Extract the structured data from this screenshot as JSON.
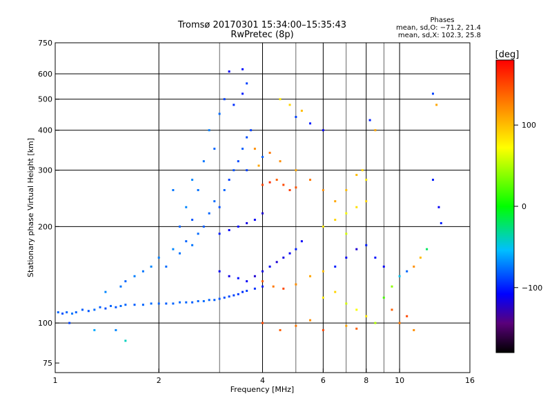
{
  "chart_data": {
    "type": "scatter",
    "title": "Tromsø 20170301 15:34:00–15:35:43",
    "subtitle": "RwPretec (8p)",
    "xlabel": "Frequency [MHz]",
    "ylabel": "Stationary phase Virtual Height [km]",
    "x_scale": "log",
    "y_scale": "log",
    "xlim": [
      1,
      16
    ],
    "ylim": [
      70,
      750
    ],
    "x_ticks": [
      1,
      2,
      4,
      6,
      8,
      10,
      16
    ],
    "y_ticks": [
      75,
      100,
      200,
      300,
      400,
      500,
      600,
      750
    ],
    "x_grid_major": [
      2,
      4,
      6,
      8,
      10
    ],
    "x_grid_minor": [
      3,
      5,
      7,
      9
    ],
    "y_grid": [
      100,
      200,
      300,
      400,
      500,
      600
    ],
    "legend": {
      "heading": "Phases",
      "line1": "mean, sd,O: −71.2, 21.4",
      "line2": "mean, sd,X: 102.3, 25.8"
    },
    "colorbar": {
      "label": "[deg]",
      "range": [
        -180,
        180
      ],
      "ticks": [
        "100",
        "0",
        "−100"
      ],
      "tick_values": [
        100,
        0,
        -100
      ]
    },
    "series": [
      {
        "description_points": "[frequency MHz, virtual height km, phase deg]",
        "points": [
          [
            1.02,
            108,
            -80
          ],
          [
            1.05,
            107,
            -85
          ],
          [
            1.08,
            108,
            -80
          ],
          [
            1.12,
            107,
            -75
          ],
          [
            1.15,
            108,
            -80
          ],
          [
            1.2,
            110,
            -82
          ],
          [
            1.25,
            109,
            -84
          ],
          [
            1.3,
            110,
            -78
          ],
          [
            1.35,
            112,
            -82
          ],
          [
            1.4,
            111,
            -86
          ],
          [
            1.45,
            113,
            -80
          ],
          [
            1.5,
            112,
            -84
          ],
          [
            1.55,
            113,
            -78
          ],
          [
            1.6,
            114,
            -80
          ],
          [
            1.7,
            114,
            -82
          ],
          [
            1.8,
            114,
            -80
          ],
          [
            1.9,
            115,
            -78
          ],
          [
            2.0,
            115,
            -80
          ],
          [
            2.1,
            115,
            -82
          ],
          [
            2.2,
            115,
            -80
          ],
          [
            2.3,
            116,
            -78
          ],
          [
            2.4,
            116,
            -80
          ],
          [
            2.5,
            116,
            -82
          ],
          [
            2.6,
            117,
            -80
          ],
          [
            2.7,
            117,
            -78
          ],
          [
            2.8,
            118,
            -80
          ],
          [
            2.9,
            118,
            -82
          ],
          [
            3.0,
            119,
            -84
          ],
          [
            3.1,
            120,
            -86
          ],
          [
            3.2,
            121,
            -88
          ],
          [
            3.3,
            122,
            -90
          ],
          [
            3.4,
            123,
            -92
          ],
          [
            3.5,
            125,
            -95
          ],
          [
            3.6,
            126,
            -90
          ],
          [
            3.8,
            128,
            -95
          ],
          [
            4.0,
            130,
            -100
          ],
          [
            1.3,
            95,
            -60
          ],
          [
            1.5,
            95,
            -70
          ],
          [
            1.6,
            88,
            -40
          ],
          [
            1.1,
            100,
            -90
          ],
          [
            1.4,
            125,
            -70
          ],
          [
            1.55,
            130,
            -75
          ],
          [
            1.6,
            135,
            -80
          ],
          [
            1.7,
            140,
            -72
          ],
          [
            1.8,
            145,
            -75
          ],
          [
            1.9,
            150,
            -70
          ],
          [
            2.0,
            160,
            -72
          ],
          [
            2.1,
            150,
            -78
          ],
          [
            2.2,
            170,
            -70
          ],
          [
            2.3,
            165,
            -76
          ],
          [
            2.4,
            180,
            -80
          ],
          [
            2.5,
            175,
            -75
          ],
          [
            2.6,
            190,
            -78
          ],
          [
            2.7,
            200,
            -82
          ],
          [
            2.8,
            220,
            -80
          ],
          [
            2.9,
            240,
            -78
          ],
          [
            3.0,
            230,
            -85
          ],
          [
            3.1,
            260,
            -80
          ],
          [
            3.2,
            280,
            -90
          ],
          [
            3.3,
            300,
            -85
          ],
          [
            3.4,
            320,
            -88
          ],
          [
            3.5,
            350,
            -82
          ],
          [
            3.6,
            380,
            -86
          ],
          [
            3.7,
            400,
            -90
          ],
          [
            3.3,
            480,
            -95
          ],
          [
            3.5,
            520,
            -100
          ],
          [
            3.6,
            560,
            -90
          ],
          [
            3.2,
            610,
            -110
          ],
          [
            3.5,
            620,
            -105
          ],
          [
            2.5,
            280,
            -70
          ],
          [
            2.7,
            320,
            -75
          ],
          [
            2.9,
            350,
            -80
          ],
          [
            2.8,
            400,
            -72
          ],
          [
            3.0,
            450,
            -78
          ],
          [
            3.1,
            500,
            -90
          ],
          [
            2.2,
            260,
            -75
          ],
          [
            2.4,
            230,
            -70
          ],
          [
            2.6,
            260,
            -76
          ],
          [
            2.3,
            200,
            -80
          ],
          [
            2.5,
            210,
            -85
          ],
          [
            3.0,
            190,
            -100
          ],
          [
            3.2,
            195,
            -110
          ],
          [
            3.4,
            200,
            -105
          ],
          [
            3.6,
            205,
            -115
          ],
          [
            3.8,
            210,
            -110
          ],
          [
            4.0,
            220,
            -120
          ],
          [
            3.0,
            145,
            -110
          ],
          [
            3.2,
            140,
            -115
          ],
          [
            3.4,
            138,
            -105
          ],
          [
            3.6,
            135,
            -110
          ],
          [
            3.8,
            140,
            -120
          ],
          [
            4.0,
            145,
            -115
          ],
          [
            4.2,
            150,
            -110
          ],
          [
            4.4,
            155,
            -120
          ],
          [
            4.6,
            160,
            -115
          ],
          [
            4.8,
            165,
            -110
          ],
          [
            5.0,
            170,
            -100
          ],
          [
            5.2,
            180,
            -110
          ],
          [
            4.0,
            270,
            150
          ],
          [
            4.2,
            275,
            160
          ],
          [
            4.4,
            280,
            140
          ],
          [
            4.6,
            270,
            150
          ],
          [
            4.8,
            260,
            155
          ],
          [
            5.0,
            265,
            145
          ],
          [
            4.5,
            320,
            120
          ],
          [
            5.0,
            300,
            110
          ],
          [
            5.5,
            280,
            130
          ],
          [
            6.0,
            260,
            120
          ],
          [
            6.5,
            240,
            110
          ],
          [
            7.0,
            260,
            100
          ],
          [
            4.0,
            135,
            140
          ],
          [
            4.3,
            130,
            130
          ],
          [
            4.6,
            128,
            150
          ],
          [
            5.0,
            132,
            120
          ],
          [
            5.5,
            140,
            110
          ],
          [
            6.0,
            145,
            100
          ],
          [
            6.5,
            150,
            -100
          ],
          [
            7.0,
            160,
            -110
          ],
          [
            7.5,
            170,
            -120
          ],
          [
            8.0,
            175,
            -100
          ],
          [
            8.5,
            160,
            -105
          ],
          [
            9.0,
            150,
            -110
          ],
          [
            6.0,
            200,
            80
          ],
          [
            6.5,
            210,
            90
          ],
          [
            7.0,
            220,
            70
          ],
          [
            7.5,
            230,
            85
          ],
          [
            8.0,
            240,
            90
          ],
          [
            7.0,
            190,
            60
          ],
          [
            6.0,
            120,
            80
          ],
          [
            6.5,
            125,
            90
          ],
          [
            7.0,
            115,
            60
          ],
          [
            7.5,
            110,
            70
          ],
          [
            8.0,
            105,
            80
          ],
          [
            8.5,
            100,
            50
          ],
          [
            9.0,
            120,
            20
          ],
          [
            9.5,
            130,
            40
          ],
          [
            10.0,
            140,
            -50
          ],
          [
            10.5,
            145,
            -80
          ],
          [
            11.0,
            150,
            120
          ],
          [
            11.5,
            160,
            100
          ],
          [
            12.0,
            170,
            -20
          ],
          [
            12.5,
            520,
            -90
          ],
          [
            12.8,
            480,
            110
          ],
          [
            12.5,
            280,
            -100
          ],
          [
            13.0,
            230,
            -110
          ],
          [
            13.2,
            205,
            -100
          ],
          [
            5.0,
            440,
            -90
          ],
          [
            5.5,
            420,
            -100
          ],
          [
            6.0,
            400,
            -110
          ],
          [
            4.5,
            500,
            80
          ],
          [
            4.8,
            480,
            90
          ],
          [
            5.2,
            460,
            100
          ],
          [
            3.8,
            350,
            120
          ],
          [
            4.0,
            330,
            -80
          ],
          [
            4.2,
            340,
            130
          ],
          [
            3.6,
            300,
            -90
          ],
          [
            3.9,
            310,
            110
          ],
          [
            8.2,
            430,
            -100
          ],
          [
            8.5,
            400,
            110
          ],
          [
            7.8,
            300,
            90
          ],
          [
            7.5,
            290,
            100
          ],
          [
            8.0,
            280,
            80
          ],
          [
            9.5,
            110,
            140
          ],
          [
            10.0,
            100,
            130
          ],
          [
            10.5,
            105,
            150
          ],
          [
            11.0,
            95,
            120
          ],
          [
            4.0,
            100,
            150
          ],
          [
            4.5,
            95,
            140
          ],
          [
            5.0,
            98,
            130
          ],
          [
            5.5,
            102,
            120
          ],
          [
            6.0,
            95,
            150
          ],
          [
            7.0,
            98,
            110
          ],
          [
            7.5,
            96,
            140
          ]
        ]
      }
    ]
  }
}
